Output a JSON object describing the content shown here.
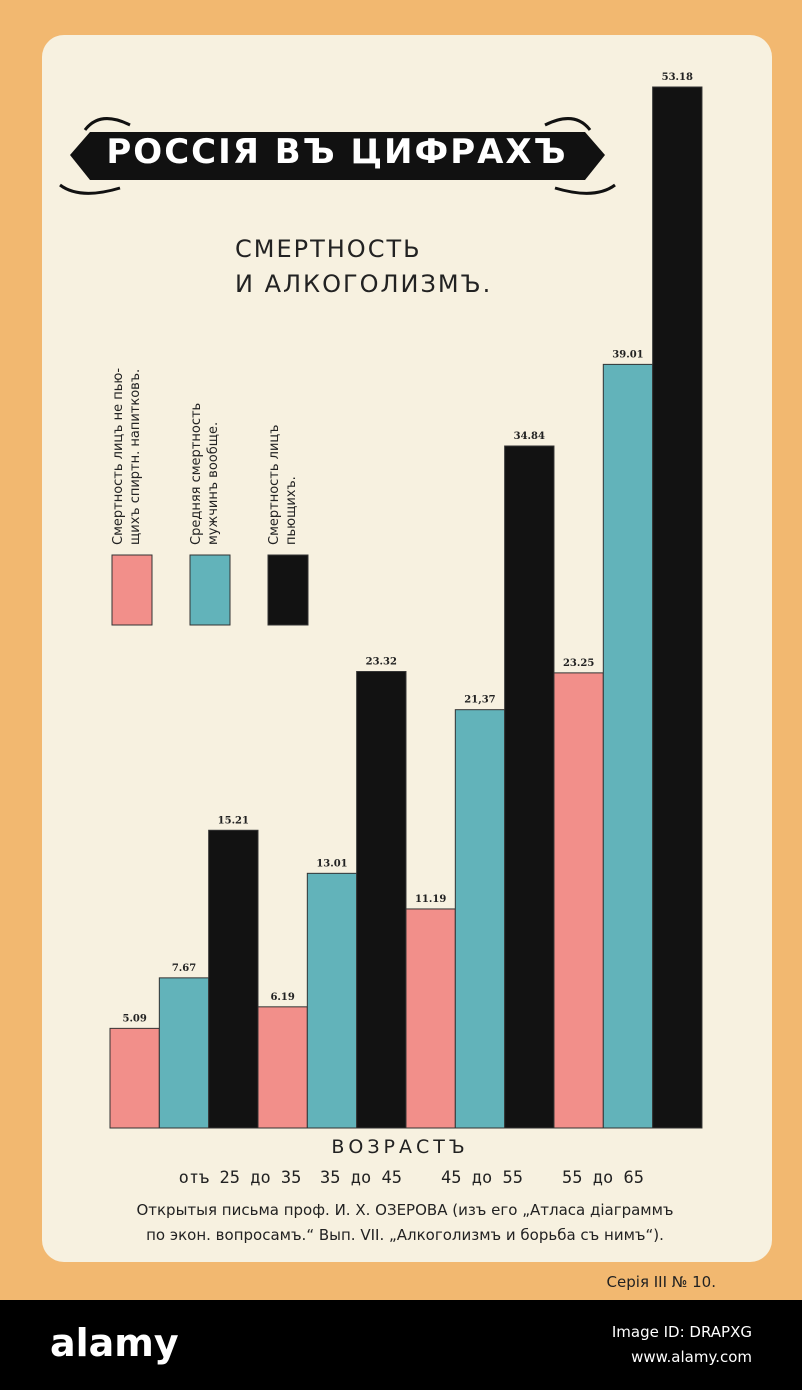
{
  "banner": "РОССІЯ ВЪ ЦИФРАХЪ",
  "chart_data": {
    "type": "bar",
    "title": "СМЕРТНОСТЬ\nИ АЛКОГОЛИЗМЪ.",
    "x_label": "ВОЗРАСТЪ",
    "categories": [
      "отъ 25 до 35",
      "35 до 45",
      "45 до 55",
      "55 до 65"
    ],
    "series": [
      {
        "name": "Смертность лицъ не пью-\nщихъ спиртн. напитковъ.",
        "color": "#f28f8a",
        "values": [
          5.09,
          6.19,
          11.19,
          23.25
        ]
      },
      {
        "name": "Средняя смертность\nмужчинъ вообще.",
        "color": "#62b3ba",
        "values": [
          7.67,
          13.01,
          21.37,
          39.01
        ],
        "value_labels": [
          "7.67",
          "13.01",
          "21,37",
          "39.01"
        ]
      },
      {
        "name": "Смертность лицъ\nпьющихъ.",
        "color": "#121212",
        "values": [
          15.21,
          23.32,
          34.84,
          53.18
        ]
      }
    ],
    "source": "Открытыя письма проф. И. Х. ОЗЕРОВА (изъ его „Атласа діаграммъ\nпо экон. вопросамъ.“ Вып. VII. „Алкоголизмъ и борьба съ нимъ“)."
  },
  "series_label": "Серія III № 10.",
  "watermark": {
    "brand": "alamy",
    "image_id": "Image ID: DRAPXG",
    "url": "www.alamy.com"
  }
}
